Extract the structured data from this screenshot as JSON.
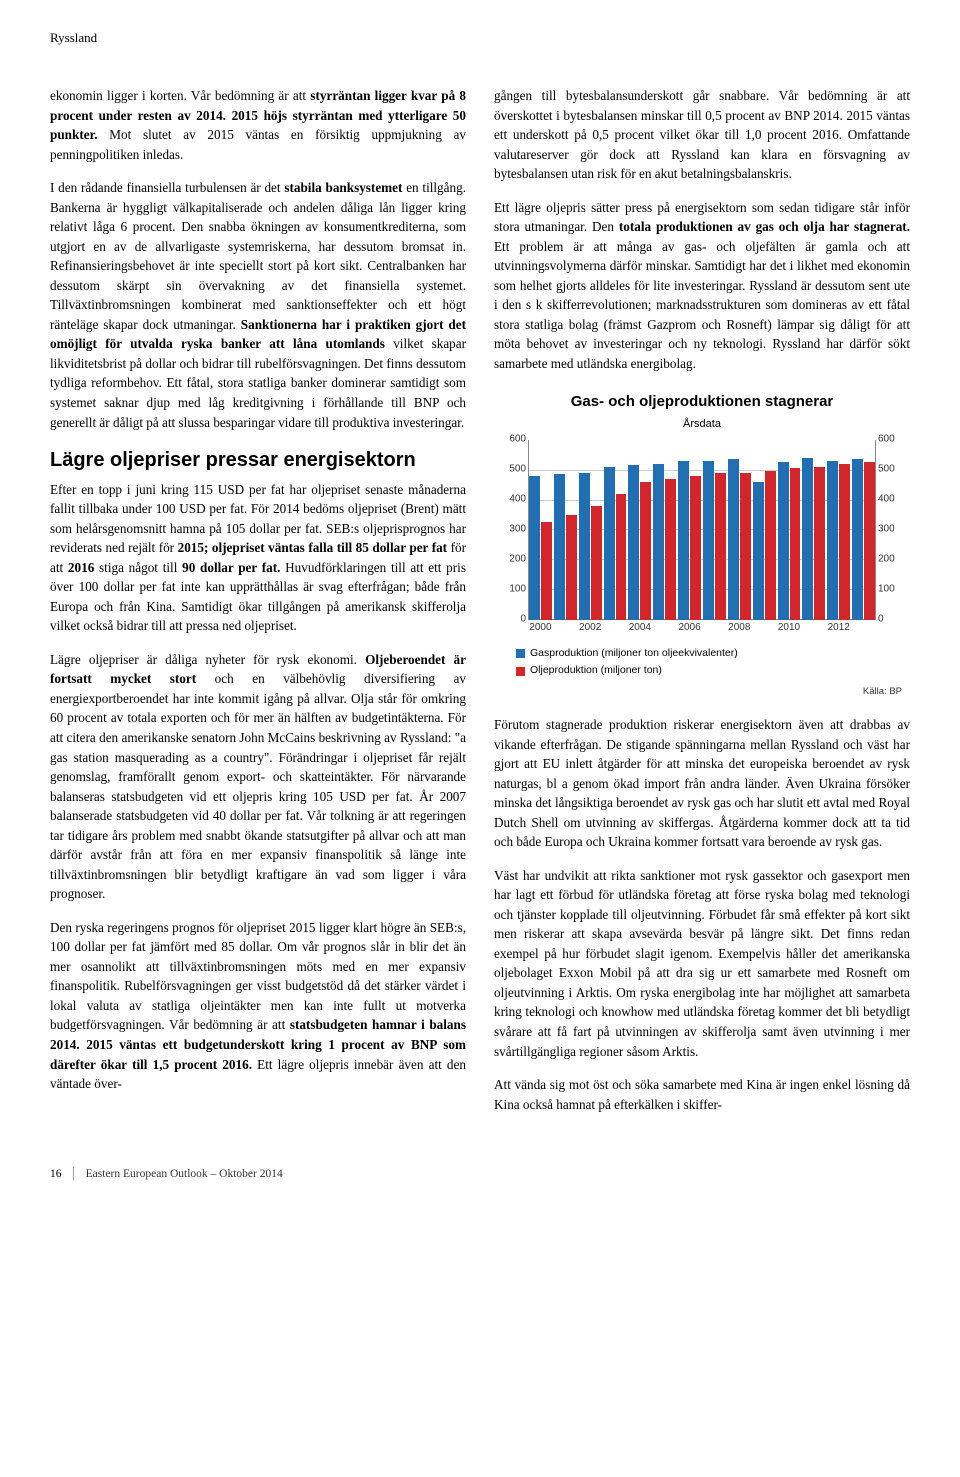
{
  "header": {
    "section": "Ryssland"
  },
  "left": {
    "p1": "ekonomin ligger i korten. Vår bedömning är att <strong>styrräntan ligger kvar på 8 procent under resten av 2014. 2015 höjs styrräntan med ytterligare 50 punkter.</strong> Mot slutet av 2015 väntas en försiktig uppmjukning av penningpolitiken inledas.",
    "p2": "I den rådande finansiella turbulensen är det <strong>stabila banksystemet</strong> en tillgång. Bankerna är hyggligt välkapitaliserade och andelen dåliga lån ligger kring relativt låga 6 procent. Den snabba ökningen av konsumentkrediterna, som utgjort en av de allvarligaste systemriskerna, har dessutom bromsat in. Refinansieringsbehovet är inte speciellt stort på kort sikt. Centralbanken har dessutom skärpt sin övervakning av det finansiella systemet. Tillväxtinbromsningen kombinerat med sanktionseffekter och ett högt ränteläge skapar dock utmaningar. <strong>Sanktionerna har i praktiken gjort det omöjligt för utvalda ryska banker att låna utomlands</strong> vilket skapar likviditetsbrist på dollar och bidrar till rubelförsvagningen. Det finns dessutom tydliga reformbehov. Ett fåtal, stora statliga banker dominerar samtidigt som systemet saknar djup med låg kreditgivning i förhållande till BNP och generellt är dåligt på att slussa besparingar vidare till produktiva investeringar.",
    "h2": "Lägre oljepriser pressar energisektorn",
    "p3": "Efter en topp i juni kring 115 USD per fat har oljepriset senaste månaderna fallit tillbaka under 100 USD per fat. För 2014 bedöms oljepriset (Brent) mätt som helårsgenomsnitt hamna på 105 dollar per fat. SEB:s oljeprisprognos har reviderats ned rejält för <strong>2015; oljepriset väntas falla till 85 dollar per fat</strong> för att <strong>2016</strong> stiga något till <strong>90 dollar per fat.</strong> Huvudförklaringen till att ett pris över 100 dollar per fat inte kan upprätthållas är svag efterfrågan; både från Europa och från Kina. Samtidigt ökar tillgången på amerikansk skifferolja vilket också bidrar till att pressa ned oljepriset.",
    "p4": "Lägre oljepriser är dåliga nyheter för rysk ekonomi. <strong>Oljeberoendet är fortsatt mycket stort</strong> och en välbehövlig diversifiering av energiexportberoendet har inte kommit igång på allvar. Olja står för omkring 60 procent av totala exporten och för mer än hälften av budgetintäkterna. För att citera den amerikanske senatorn John McCains beskrivning av Ryssland: \"a gas station masquerading as a country\". Förändringar i oljepriset får rejält genomslag, framförallt genom export- och skatteintäkter. För närvarande balanseras statsbudgeten vid ett oljepris kring 105 USD per fat. År 2007 balanserade statsbudgeten vid 40 dollar per fat. Vår tolkning är att regeringen tar tidigare års problem med snabbt ökande statsutgifter på allvar och att man därför avstår från att föra en mer expansiv finanspolitik så länge inte tillväxtinbromsningen blir betydligt kraftigare än vad som ligger i våra prognoser.",
    "p5": "Den ryska regeringens prognos för oljepriset 2015 ligger klart högre än SEB:s, 100 dollar per fat jämfört med 85 dollar. Om vår prognos slår in blir det än mer osannolikt att tillväxtinbromsningen möts med en mer expansiv finanspolitik. Rubelförsvagningen ger visst budgetstöd då det stärker värdet i lokal valuta av statliga oljeintäkter men kan inte fullt ut motverka budgetförsvagningen. Vår bedömning är att <strong>statsbudgeten hamnar i balans 2014. 2015 väntas ett budgetunderskott kring 1 procent av BNP som därefter ökar till 1,5 procent 2016.</strong> Ett lägre oljepris innebär även att den väntade över-"
  },
  "right": {
    "p1": "gången till bytesbalansunderskott går snabbare. Vår bedömning är att överskottet i bytesbalansen minskar till 0,5 procent av BNP 2014. 2015 väntas ett underskott på 0,5 procent vilket ökar till 1,0 procent 2016. Omfattande valutareserver gör dock att Ryssland kan klara en försvagning av bytesbalansen utan risk för en akut betalningsbalanskris.",
    "p2": "Ett lägre oljepris sätter press på energisektorn som sedan tidigare står inför stora utmaningar. Den <strong>totala produktionen av gas och olja har stagnerat.</strong> Ett problem är att många av gas- och oljefälten är gamla och att utvinningsvolymerna därför minskar. Samtidigt har det i likhet med ekonomin som helhet gjorts alldeles för lite investeringar. Ryssland är dessutom sent ute i den s k skifferrevolutionen; marknadsstrukturen som domineras av ett fåtal stora statliga bolag (främst Gazprom och Rosneft) lämpar sig dåligt för att möta behovet av investeringar och ny teknologi. Ryssland har därför sökt samarbete med utländska energibolag.",
    "p3": "Förutom stagnerade produktion riskerar energisektorn även att drabbas av vikande efterfrågan. De stigande spänningarna mellan Ryssland och väst har gjort att EU inlett åtgärder för att minska det europeiska beroendet av rysk naturgas, bl a genom ökad import från andra länder. Även Ukraina försöker minska det långsiktiga beroendet av rysk gas och har slutit ett avtal med Royal Dutch Shell om utvinning av skiffergas. Åtgärderna kommer dock att ta tid och både Europa och Ukraina kommer fortsatt vara beroende av rysk gas.",
    "p4": "Väst har undvikit att rikta sanktioner mot rysk gassektor och gasexport men har lagt ett förbud för utländska företag att förse ryska bolag med teknologi och tjänster kopplade till oljeutvinning. Förbudet får små effekter på kort sikt men riskerar att skapa avsevärda besvär på längre sikt. Det finns redan exempel på hur förbudet slagit igenom. Exempelvis håller det amerikanska oljebolaget Exxon Mobil på att dra sig ur ett samarbete med Rosneft om oljeutvinning i Arktis. Om ryska energibolag inte har möjlighet att samarbeta kring teknologi och knowhow med utländska företag kommer det bli betydligt svårare att få fart på utvinningen av skifferolja samt även utvinning i mer svårtillgängliga regioner såsom Arktis.",
    "p5": "Att vända sig mot öst och söka samarbete med Kina är ingen enkel lösning då Kina också hamnat på efterkälken i skiffer-"
  },
  "chart": {
    "title": "Gas- och oljeproduktionen stagnerar",
    "subtitle": "Årsdata",
    "ylim": [
      0,
      600
    ],
    "ytick_step": 100,
    "xticks": [
      "2000",
      "2002",
      "2004",
      "2006",
      "2008",
      "2010",
      "2012"
    ],
    "years": [
      2000,
      2001,
      2002,
      2003,
      2004,
      2005,
      2006,
      2007,
      2008,
      2009,
      2010,
      2011,
      2012,
      2013
    ],
    "gas": [
      480,
      485,
      490,
      510,
      515,
      520,
      530,
      530,
      535,
      460,
      525,
      540,
      530,
      535
    ],
    "oil": [
      325,
      350,
      380,
      420,
      460,
      470,
      480,
      490,
      490,
      495,
      505,
      510,
      520,
      525
    ],
    "gas_color": "#1f6fb2",
    "oil_color": "#d4262a",
    "grid_color": "#cccccc",
    "axis_color": "#888888",
    "legend_gas": "Gasproduktion (miljoner ton oljeekvivalenter)",
    "legend_oil": "Oljeproduktion (miljoner ton)",
    "source": "Källa: BP"
  },
  "footer": {
    "page": "16",
    "pub": "Eastern European Outlook – Oktober 2014"
  }
}
